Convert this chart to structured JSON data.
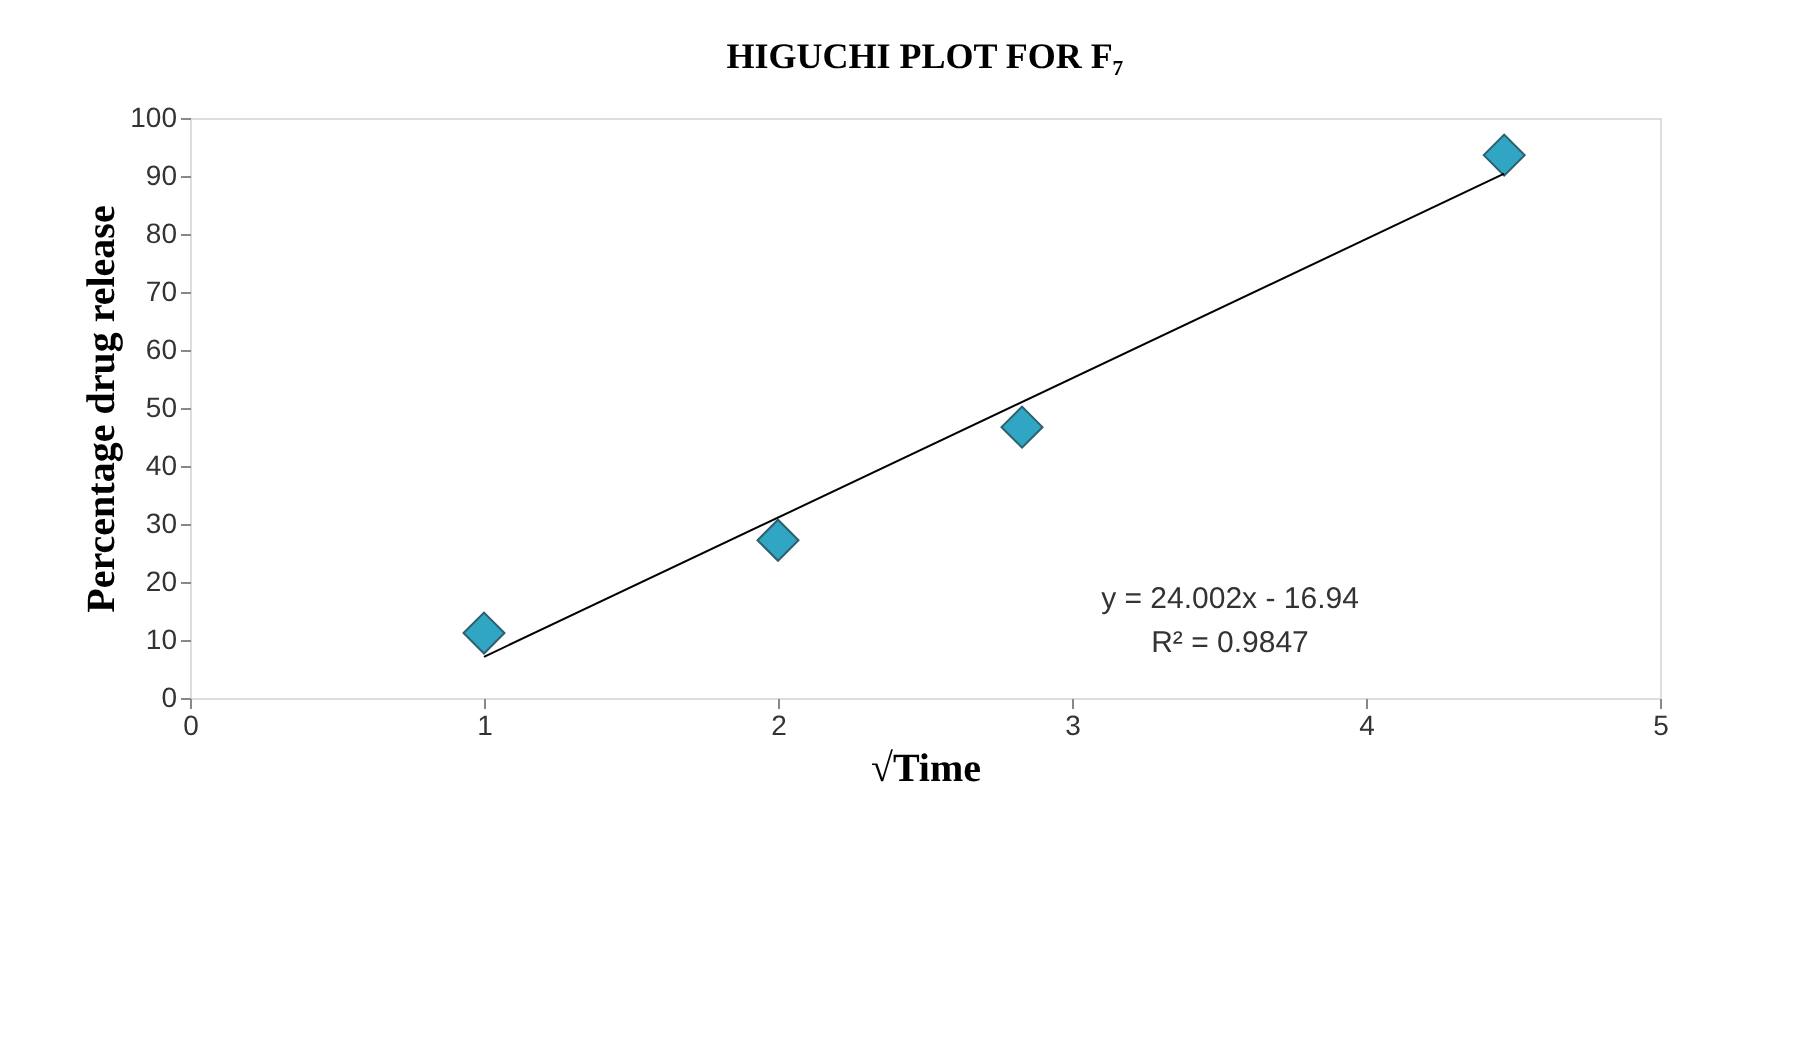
{
  "chart_data": {
    "type": "scatter",
    "title": "HIGUCHI  PLOT FOR F₇",
    "xlabel": "√Time",
    "ylabel": "Percentage  drug release",
    "x": [
      1,
      2,
      2.83,
      4.47
    ],
    "series": [
      {
        "color": "#31a5c4",
        "values": [
          11.2,
          27.2,
          46.7,
          93.6
        ],
        "marker": "diamond"
      },
      {
        "type": "line",
        "color": "#000000",
        "x": [
          1,
          4.47
        ],
        "values": [
          7.1,
          90.4
        ],
        "marker": "none",
        "line_style": "solid"
      }
    ],
    "annotations": [
      "y = 24.002x - 16.94",
      "R² = 0.9847"
    ],
    "xlim": [
      0,
      5
    ],
    "xticks": [
      0,
      1,
      2,
      3,
      4,
      5
    ],
    "ylim": [
      0,
      100
    ],
    "yticks": [
      0,
      10,
      20,
      30,
      40,
      50,
      60,
      70,
      80,
      90,
      100
    ],
    "grid": false
  }
}
